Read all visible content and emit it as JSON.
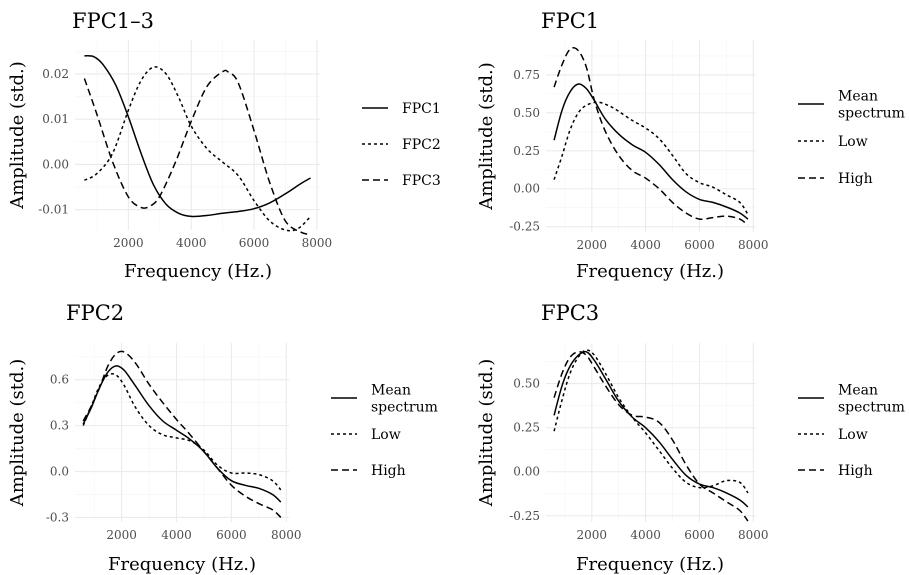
{
  "chart_data": [
    {
      "type": "line",
      "title": "FPC1–3",
      "xlabel": "Frequency (Hz.)",
      "ylabel": "Amplitude (std.)",
      "xlim": [
        300,
        8100
      ],
      "ylim": [
        -0.0145,
        0.0275
      ],
      "xticks": [
        2000,
        4000,
        6000,
        8000
      ],
      "yticks": [
        -0.01,
        0.0,
        0.01,
        0.02
      ],
      "xtick_labels": [
        "2000",
        "4000",
        "6000",
        "8000"
      ],
      "ytick_labels": [
        "-0.01",
        "0.00",
        "0.01",
        "0.02"
      ],
      "grid": true,
      "legend_position": "right",
      "series": [
        {
          "name": "FPC1",
          "dash": "solid",
          "x": [
            600,
            900,
            1200,
            1600,
            2000,
            2400,
            2800,
            3200,
            3600,
            4000,
            4500,
            5000,
            5500,
            6000,
            6500,
            7000,
            7500,
            7800
          ],
          "y": [
            0.024,
            0.0238,
            0.022,
            0.0175,
            0.0105,
            0.0025,
            -0.0045,
            -0.0088,
            -0.0108,
            -0.0115,
            -0.0113,
            -0.0108,
            -0.0104,
            -0.0098,
            -0.0085,
            -0.0065,
            -0.0042,
            -0.003
          ]
        },
        {
          "name": "FPC2",
          "dash": "dotted",
          "x": [
            600,
            1000,
            1500,
            2000,
            2400,
            2800,
            3200,
            3600,
            4000,
            4500,
            5000,
            5500,
            6000,
            6500,
            7000,
            7400,
            7800
          ],
          "y": [
            -0.0035,
            -0.002,
            0.0025,
            0.012,
            0.0185,
            0.0215,
            0.02,
            0.0148,
            0.0085,
            0.0035,
            0.0005,
            -0.0025,
            -0.008,
            -0.0125,
            -0.0145,
            -0.0142,
            -0.0115
          ]
        },
        {
          "name": "FPC3",
          "dash": "dashed",
          "x": [
            600,
            1000,
            1500,
            2000,
            2400,
            2700,
            3000,
            3500,
            4000,
            4500,
            5000,
            5200,
            5500,
            6000,
            6500,
            7000,
            7500,
            7800
          ],
          "y": [
            0.019,
            0.011,
            0.0005,
            -0.0072,
            -0.0095,
            -0.0092,
            -0.007,
            0.0005,
            0.0095,
            0.0172,
            0.0205,
            0.0203,
            0.018,
            0.0075,
            -0.004,
            -0.0125,
            -0.015,
            -0.0155
          ]
        }
      ]
    },
    {
      "type": "line",
      "title": "FPC1",
      "xlabel": "Frequency (Hz.)",
      "ylabel": "Amplitude (std.)",
      "xlim": [
        300,
        8100
      ],
      "ylim": [
        -0.285,
        0.98
      ],
      "xticks": [
        2000,
        4000,
        6000,
        8000
      ],
      "yticks": [
        -0.25,
        0.0,
        0.25,
        0.5,
        0.75
      ],
      "xtick_labels": [
        "2000",
        "4000",
        "6000",
        "8000"
      ],
      "ytick_labels": [
        "-0.25",
        "0.00",
        "0.25",
        "0.50",
        "0.75"
      ],
      "grid": true,
      "legend_position": "right",
      "legend_labels": [
        [
          "Mean",
          "spectrum"
        ],
        [
          "Low"
        ],
        [
          "High"
        ]
      ],
      "series": [
        {
          "name": "Mean spectrum",
          "dash": "solid",
          "x": [
            600,
            900,
            1200,
            1500,
            1800,
            2100,
            2500,
            3000,
            3500,
            4000,
            4500,
            5000,
            5500,
            6000,
            6500,
            7000,
            7500,
            7800
          ],
          "y": [
            0.32,
            0.52,
            0.64,
            0.69,
            0.66,
            0.58,
            0.46,
            0.36,
            0.29,
            0.24,
            0.16,
            0.06,
            -0.02,
            -0.07,
            -0.09,
            -0.12,
            -0.16,
            -0.2
          ]
        },
        {
          "name": "Low",
          "dash": "dotted",
          "x": [
            600,
            900,
            1200,
            1500,
            1800,
            2200,
            2600,
            3000,
            3500,
            4000,
            4500,
            5000,
            5500,
            6000,
            6500,
            7000,
            7500,
            7800
          ],
          "y": [
            0.06,
            0.22,
            0.39,
            0.5,
            0.55,
            0.57,
            0.55,
            0.51,
            0.45,
            0.4,
            0.33,
            0.22,
            0.1,
            0.04,
            0.01,
            -0.04,
            -0.09,
            -0.17
          ]
        },
        {
          "name": "High",
          "dash": "dashed",
          "x": [
            600,
            900,
            1200,
            1500,
            1800,
            2100,
            2500,
            3000,
            3500,
            4000,
            4500,
            5000,
            5500,
            6000,
            6500,
            7000,
            7500,
            7800
          ],
          "y": [
            0.67,
            0.82,
            0.92,
            0.91,
            0.8,
            0.58,
            0.38,
            0.22,
            0.12,
            0.07,
            0.0,
            -0.09,
            -0.16,
            -0.2,
            -0.19,
            -0.18,
            -0.2,
            -0.24
          ]
        }
      ]
    },
    {
      "type": "line",
      "title": "FPC2",
      "xlabel": "Frequency (Hz.)",
      "ylabel": "Amplitude (std.)",
      "xlim": [
        300,
        8100
      ],
      "ylim": [
        -0.33,
        0.84
      ],
      "xticks": [
        2000,
        4000,
        6000,
        8000
      ],
      "yticks": [
        -0.3,
        0.0,
        0.3,
        0.6
      ],
      "xtick_labels": [
        "2000",
        "4000",
        "6000",
        "8000"
      ],
      "ytick_labels": [
        "-0.3",
        "0.0",
        "0.3",
        "0.6"
      ],
      "grid": true,
      "legend_position": "right",
      "legend_labels": [
        [
          "Mean",
          "spectrum"
        ],
        [
          "Low"
        ],
        [
          "High"
        ]
      ],
      "series": [
        {
          "name": "Mean spectrum",
          "dash": "solid",
          "x": [
            600,
            900,
            1200,
            1500,
            1800,
            2100,
            2500,
            3000,
            3500,
            4000,
            4500,
            5000,
            5500,
            6000,
            6500,
            7000,
            7500,
            7800
          ],
          "y": [
            0.31,
            0.42,
            0.55,
            0.65,
            0.69,
            0.66,
            0.56,
            0.43,
            0.33,
            0.27,
            0.21,
            0.13,
            0.02,
            -0.06,
            -0.09,
            -0.11,
            -0.15,
            -0.2
          ]
        },
        {
          "name": "Low",
          "dash": "dotted",
          "x": [
            600,
            900,
            1200,
            1500,
            1800,
            2100,
            2500,
            3000,
            3500,
            4000,
            4500,
            5000,
            5500,
            6000,
            6500,
            7000,
            7500,
            7800
          ],
          "y": [
            0.3,
            0.43,
            0.56,
            0.63,
            0.63,
            0.56,
            0.42,
            0.3,
            0.24,
            0.22,
            0.2,
            0.14,
            0.04,
            -0.01,
            -0.01,
            -0.02,
            -0.06,
            -0.12
          ]
        },
        {
          "name": "High",
          "dash": "dashed",
          "x": [
            600,
            900,
            1200,
            1500,
            1800,
            2100,
            2500,
            3000,
            3500,
            4000,
            4500,
            5000,
            5500,
            6000,
            6500,
            7000,
            7500,
            7800
          ],
          "y": [
            0.33,
            0.43,
            0.55,
            0.69,
            0.77,
            0.78,
            0.71,
            0.57,
            0.45,
            0.34,
            0.24,
            0.13,
            0.02,
            -0.09,
            -0.16,
            -0.21,
            -0.25,
            -0.3
          ]
        }
      ]
    },
    {
      "type": "line",
      "title": "FPC3",
      "xlabel": "Frequency (Hz.)",
      "ylabel": "Amplitude (std.)",
      "xlim": [
        300,
        8100
      ],
      "ylim": [
        -0.285,
        0.73
      ],
      "xticks": [
        2000,
        4000,
        6000,
        8000
      ],
      "yticks": [
        -0.25,
        0.0,
        0.25,
        0.5
      ],
      "xtick_labels": [
        "2000",
        "4000",
        "6000",
        "8000"
      ],
      "ytick_labels": [
        "-0.25",
        "0.00",
        "0.25",
        "0.50"
      ],
      "grid": true,
      "legend_position": "right",
      "legend_labels": [
        [
          "Mean",
          "spectrum"
        ],
        [
          "Low"
        ],
        [
          "High"
        ]
      ],
      "series": [
        {
          "name": "Mean spectrum",
          "dash": "solid",
          "x": [
            600,
            900,
            1200,
            1500,
            1800,
            2100,
            2500,
            3000,
            3500,
            4000,
            4500,
            5000,
            5500,
            6000,
            6500,
            7000,
            7500,
            7800
          ],
          "y": [
            0.32,
            0.49,
            0.6,
            0.66,
            0.68,
            0.63,
            0.53,
            0.4,
            0.31,
            0.25,
            0.17,
            0.07,
            -0.02,
            -0.07,
            -0.09,
            -0.12,
            -0.16,
            -0.2
          ]
        },
        {
          "name": "Low",
          "dash": "dotted",
          "x": [
            600,
            900,
            1200,
            1500,
            1800,
            2100,
            2500,
            3000,
            3500,
            4000,
            4500,
            5000,
            5500,
            6000,
            6500,
            7000,
            7500,
            7800
          ],
          "y": [
            0.23,
            0.41,
            0.56,
            0.65,
            0.69,
            0.66,
            0.56,
            0.42,
            0.31,
            0.22,
            0.12,
            0.02,
            -0.06,
            -0.09,
            -0.08,
            -0.05,
            -0.06,
            -0.12
          ]
        },
        {
          "name": "High",
          "dash": "dashed",
          "x": [
            600,
            900,
            1200,
            1500,
            1800,
            2100,
            2500,
            3000,
            3500,
            4000,
            4500,
            5000,
            5500,
            6000,
            6500,
            7000,
            7500,
            7800
          ],
          "y": [
            0.42,
            0.56,
            0.65,
            0.68,
            0.66,
            0.59,
            0.49,
            0.38,
            0.32,
            0.31,
            0.28,
            0.18,
            0.04,
            -0.07,
            -0.12,
            -0.17,
            -0.22,
            -0.28
          ]
        }
      ]
    }
  ]
}
